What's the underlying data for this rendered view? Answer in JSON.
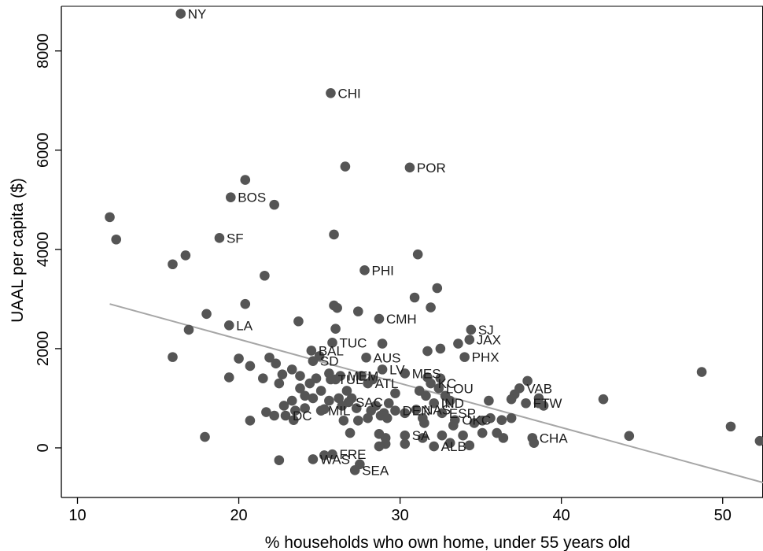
{
  "chart_data": {
    "type": "scatter",
    "title": "",
    "xlabel": "%  households who own home, under 55 years old",
    "ylabel": "UAAL per capita ($)",
    "xlim": [
      9,
      52.5
    ],
    "ylim": [
      -1000,
      8900
    ],
    "xticks": [
      10,
      20,
      30,
      40,
      50
    ],
    "yticks": [
      0,
      2000,
      4000,
      6000,
      8000
    ],
    "grid": false,
    "legend": "none",
    "colors": {
      "points": "#555555",
      "fit_line": "#a6a6a6",
      "axes": "#000000"
    },
    "fit_line": {
      "x": [
        12,
        52.5
      ],
      "y": [
        2900,
        -700
      ]
    },
    "points": [
      {
        "x": 16.4,
        "y": 8750,
        "label": "NY"
      },
      {
        "x": 25.7,
        "y": 7150,
        "label": "CHI"
      },
      {
        "x": 30.6,
        "y": 5650,
        "label": "POR"
      },
      {
        "x": 26.6,
        "y": 5670
      },
      {
        "x": 20.4,
        "y": 5400
      },
      {
        "x": 19.5,
        "y": 5050,
        "label": "BOS"
      },
      {
        "x": 22.2,
        "y": 4900
      },
      {
        "x": 12.0,
        "y": 4650
      },
      {
        "x": 12.4,
        "y": 4200
      },
      {
        "x": 18.8,
        "y": 4230,
        "label": "SF"
      },
      {
        "x": 25.9,
        "y": 4300
      },
      {
        "x": 31.1,
        "y": 3900
      },
      {
        "x": 16.7,
        "y": 3880
      },
      {
        "x": 15.9,
        "y": 3700
      },
      {
        "x": 27.8,
        "y": 3580,
        "label": "PHI"
      },
      {
        "x": 21.6,
        "y": 3470
      },
      {
        "x": 32.3,
        "y": 3220
      },
      {
        "x": 30.9,
        "y": 3030
      },
      {
        "x": 20.4,
        "y": 2900
      },
      {
        "x": 25.9,
        "y": 2870
      },
      {
        "x": 26.1,
        "y": 2820
      },
      {
        "x": 31.9,
        "y": 2830
      },
      {
        "x": 27.4,
        "y": 2750
      },
      {
        "x": 18.0,
        "y": 2700
      },
      {
        "x": 28.7,
        "y": 2600,
        "label": "CMH"
      },
      {
        "x": 23.7,
        "y": 2550
      },
      {
        "x": 19.4,
        "y": 2470,
        "label": "LA"
      },
      {
        "x": 26.0,
        "y": 2400
      },
      {
        "x": 16.9,
        "y": 2380
      },
      {
        "x": 34.4,
        "y": 2380,
        "label": "SJ"
      },
      {
        "x": 34.3,
        "y": 2180,
        "label": "JAX"
      },
      {
        "x": 33.6,
        "y": 2100
      },
      {
        "x": 25.8,
        "y": 2120,
        "label": "TUC"
      },
      {
        "x": 28.9,
        "y": 2100
      },
      {
        "x": 32.5,
        "y": 2000
      },
      {
        "x": 31.7,
        "y": 1950
      },
      {
        "x": 24.5,
        "y": 1960,
        "label": "BAL"
      },
      {
        "x": 25.0,
        "y": 1850
      },
      {
        "x": 34.0,
        "y": 1830,
        "label": "PHX"
      },
      {
        "x": 27.9,
        "y": 1820,
        "label": "AUS"
      },
      {
        "x": 15.9,
        "y": 1830
      },
      {
        "x": 20.0,
        "y": 1800
      },
      {
        "x": 21.9,
        "y": 1820
      },
      {
        "x": 22.3,
        "y": 1700
      },
      {
        "x": 20.7,
        "y": 1650
      },
      {
        "x": 24.6,
        "y": 1750,
        "label": "SD"
      },
      {
        "x": 23.3,
        "y": 1580
      },
      {
        "x": 22.7,
        "y": 1480
      },
      {
        "x": 28.9,
        "y": 1580,
        "label": "LV"
      },
      {
        "x": 30.3,
        "y": 1500,
        "label": "MES"
      },
      {
        "x": 31.7,
        "y": 1420
      },
      {
        "x": 32.5,
        "y": 1400
      },
      {
        "x": 31.9,
        "y": 1300,
        "label": "KC"
      },
      {
        "x": 32.4,
        "y": 1200,
        "label": "LOU"
      },
      {
        "x": 26.3,
        "y": 1450,
        "label": "MEM"
      },
      {
        "x": 25.6,
        "y": 1500
      },
      {
        "x": 26.0,
        "y": 1380
      },
      {
        "x": 24.8,
        "y": 1400
      },
      {
        "x": 25.7,
        "y": 1380,
        "label": "TUL"
      },
      {
        "x": 28.3,
        "y": 1380
      },
      {
        "x": 27.6,
        "y": 1450
      },
      {
        "x": 28.0,
        "y": 1300,
        "label": "ATL"
      },
      {
        "x": 23.8,
        "y": 1450
      },
      {
        "x": 24.4,
        "y": 1300
      },
      {
        "x": 19.4,
        "y": 1420
      },
      {
        "x": 21.5,
        "y": 1400
      },
      {
        "x": 22.5,
        "y": 1300
      },
      {
        "x": 23.8,
        "y": 1200
      },
      {
        "x": 25.1,
        "y": 1150
      },
      {
        "x": 24.1,
        "y": 1050
      },
      {
        "x": 26.7,
        "y": 1150
      },
      {
        "x": 27.0,
        "y": 1000
      },
      {
        "x": 26.2,
        "y": 1000
      },
      {
        "x": 26.8,
        "y": 920,
        "label": "SAC"
      },
      {
        "x": 25.6,
        "y": 950
      },
      {
        "x": 24.6,
        "y": 1000
      },
      {
        "x": 23.3,
        "y": 950
      },
      {
        "x": 22.8,
        "y": 850
      },
      {
        "x": 23.5,
        "y": 750
      },
      {
        "x": 29.7,
        "y": 1100
      },
      {
        "x": 31.2,
        "y": 1150
      },
      {
        "x": 31.6,
        "y": 1050
      },
      {
        "x": 32.1,
        "y": 900,
        "label": "IND"
      },
      {
        "x": 32.8,
        "y": 1050
      },
      {
        "x": 33.1,
        "y": 950
      },
      {
        "x": 35.5,
        "y": 950
      },
      {
        "x": 37.9,
        "y": 1350
      },
      {
        "x": 37.4,
        "y": 1200,
        "label": "VAB"
      },
      {
        "x": 37.1,
        "y": 1080
      },
      {
        "x": 36.9,
        "y": 980
      },
      {
        "x": 37.8,
        "y": 900,
        "label": "FTW"
      },
      {
        "x": 38.6,
        "y": 1000
      },
      {
        "x": 38.9,
        "y": 850
      },
      {
        "x": 38.6,
        "y": 900
      },
      {
        "x": 42.6,
        "y": 980
      },
      {
        "x": 48.7,
        "y": 1530
      },
      {
        "x": 29.3,
        "y": 900
      },
      {
        "x": 28.5,
        "y": 850
      },
      {
        "x": 29.7,
        "y": 750,
        "label": "DEN"
      },
      {
        "x": 31.0,
        "y": 770,
        "label": "NAS"
      },
      {
        "x": 32.6,
        "y": 700,
        "label": "ESP"
      },
      {
        "x": 33.4,
        "y": 560,
        "label": "OKC"
      },
      {
        "x": 31.4,
        "y": 600
      },
      {
        "x": 30.3,
        "y": 700
      },
      {
        "x": 29.0,
        "y": 700
      },
      {
        "x": 28.2,
        "y": 750
      },
      {
        "x": 27.3,
        "y": 800
      },
      {
        "x": 26.4,
        "y": 850
      },
      {
        "x": 24.1,
        "y": 800
      },
      {
        "x": 25.3,
        "y": 780
      },
      {
        "x": 25.1,
        "y": 750,
        "label": "MIL"
      },
      {
        "x": 22.9,
        "y": 650,
        "label": "DC"
      },
      {
        "x": 21.7,
        "y": 720
      },
      {
        "x": 22.2,
        "y": 650
      },
      {
        "x": 20.7,
        "y": 550
      },
      {
        "x": 23.4,
        "y": 560
      },
      {
        "x": 26.5,
        "y": 550
      },
      {
        "x": 27.4,
        "y": 550
      },
      {
        "x": 28.0,
        "y": 600
      },
      {
        "x": 28.8,
        "y": 650
      },
      {
        "x": 29.2,
        "y": 600
      },
      {
        "x": 31.5,
        "y": 500
      },
      {
        "x": 33.3,
        "y": 450
      },
      {
        "x": 34.6,
        "y": 500
      },
      {
        "x": 35.1,
        "y": 550
      },
      {
        "x": 35.6,
        "y": 600
      },
      {
        "x": 36.3,
        "y": 560
      },
      {
        "x": 36.9,
        "y": 600
      },
      {
        "x": 35.1,
        "y": 300
      },
      {
        "x": 36.0,
        "y": 300
      },
      {
        "x": 36.4,
        "y": 200
      },
      {
        "x": 38.2,
        "y": 200,
        "label": "CHA"
      },
      {
        "x": 38.3,
        "y": 100
      },
      {
        "x": 26.9,
        "y": 300
      },
      {
        "x": 28.7,
        "y": 280
      },
      {
        "x": 29.1,
        "y": 200
      },
      {
        "x": 30.3,
        "y": 250,
        "label": "SA"
      },
      {
        "x": 31.4,
        "y": 200
      },
      {
        "x": 32.6,
        "y": 250
      },
      {
        "x": 33.1,
        "y": 100
      },
      {
        "x": 33.9,
        "y": 250
      },
      {
        "x": 34.3,
        "y": 50
      },
      {
        "x": 32.1,
        "y": 30,
        "label": "ALB"
      },
      {
        "x": 30.3,
        "y": 80
      },
      {
        "x": 29.1,
        "y": 80
      },
      {
        "x": 28.7,
        "y": 30
      },
      {
        "x": 17.9,
        "y": 220
      },
      {
        "x": 44.2,
        "y": 240
      },
      {
        "x": 50.5,
        "y": 430
      },
      {
        "x": 52.3,
        "y": 140
      },
      {
        "x": 25.3,
        "y": -150
      },
      {
        "x": 25.8,
        "y": -130,
        "label": "FRE"
      },
      {
        "x": 24.6,
        "y": -230,
        "label": "WAS"
      },
      {
        "x": 22.5,
        "y": -250
      },
      {
        "x": 27.5,
        "y": -330
      },
      {
        "x": 27.2,
        "y": -450,
        "label": "SEA"
      }
    ]
  }
}
